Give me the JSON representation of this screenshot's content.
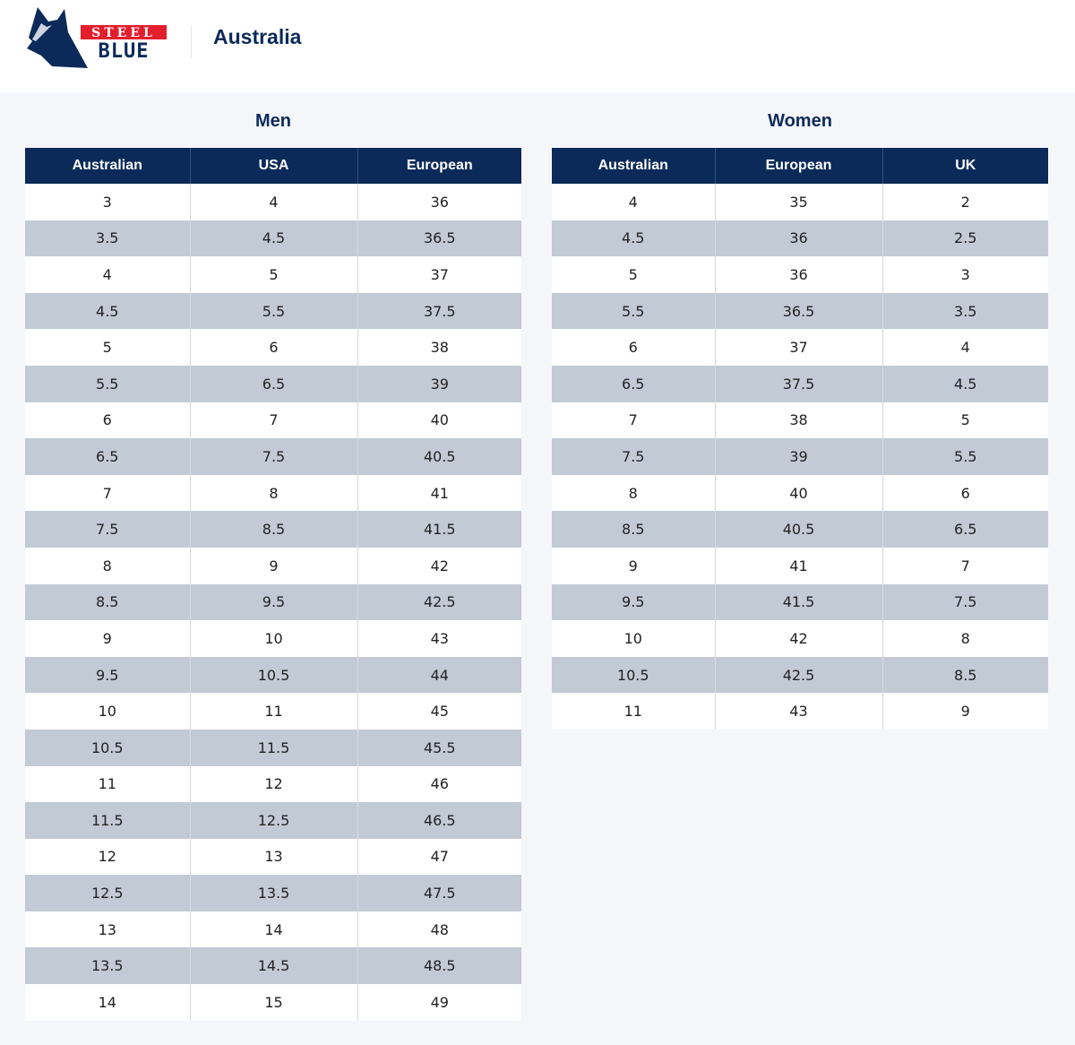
{
  "header": {
    "logo_text": [
      "STEEL",
      "BLUE"
    ],
    "country": "Australia"
  },
  "colors": {
    "navy": "#0b2a5a",
    "stripe": "#c2cad5",
    "logo_red": "#e31e2d"
  },
  "men": {
    "title": "Men",
    "columns": [
      "Australian",
      "USA",
      "European"
    ],
    "rows": [
      [
        "3",
        "4",
        "36"
      ],
      [
        "3.5",
        "4.5",
        "36.5"
      ],
      [
        "4",
        "5",
        "37"
      ],
      [
        "4.5",
        "5.5",
        "37.5"
      ],
      [
        "5",
        "6",
        "38"
      ],
      [
        "5.5",
        "6.5",
        "39"
      ],
      [
        "6",
        "7",
        "40"
      ],
      [
        "6.5",
        "7.5",
        "40.5"
      ],
      [
        "7",
        "8",
        "41"
      ],
      [
        "7.5",
        "8.5",
        "41.5"
      ],
      [
        "8",
        "9",
        "42"
      ],
      [
        "8.5",
        "9.5",
        "42.5"
      ],
      [
        "9",
        "10",
        "43"
      ],
      [
        "9.5",
        "10.5",
        "44"
      ],
      [
        "10",
        "11",
        "45"
      ],
      [
        "10.5",
        "11.5",
        "45.5"
      ],
      [
        "11",
        "12",
        "46"
      ],
      [
        "11.5",
        "12.5",
        "46.5"
      ],
      [
        "12",
        "13",
        "47"
      ],
      [
        "12.5",
        "13.5",
        "47.5"
      ],
      [
        "13",
        "14",
        "48"
      ],
      [
        "13.5",
        "14.5",
        "48.5"
      ],
      [
        "14",
        "15",
        "49"
      ]
    ]
  },
  "women": {
    "title": "Women",
    "columns": [
      "Australian",
      "European",
      "UK"
    ],
    "rows": [
      [
        "4",
        "35",
        "2"
      ],
      [
        "4.5",
        "36",
        "2.5"
      ],
      [
        "5",
        "36",
        "3"
      ],
      [
        "5.5",
        "36.5",
        "3.5"
      ],
      [
        "6",
        "37",
        "4"
      ],
      [
        "6.5",
        "37.5",
        "4.5"
      ],
      [
        "7",
        "38",
        "5"
      ],
      [
        "7.5",
        "39",
        "5.5"
      ],
      [
        "8",
        "40",
        "6"
      ],
      [
        "8.5",
        "40.5",
        "6.5"
      ],
      [
        "9",
        "41",
        "7"
      ],
      [
        "9.5",
        "41.5",
        "7.5"
      ],
      [
        "10",
        "42",
        "8"
      ],
      [
        "10.5",
        "42.5",
        "8.5"
      ],
      [
        "11",
        "43",
        "9"
      ]
    ]
  }
}
